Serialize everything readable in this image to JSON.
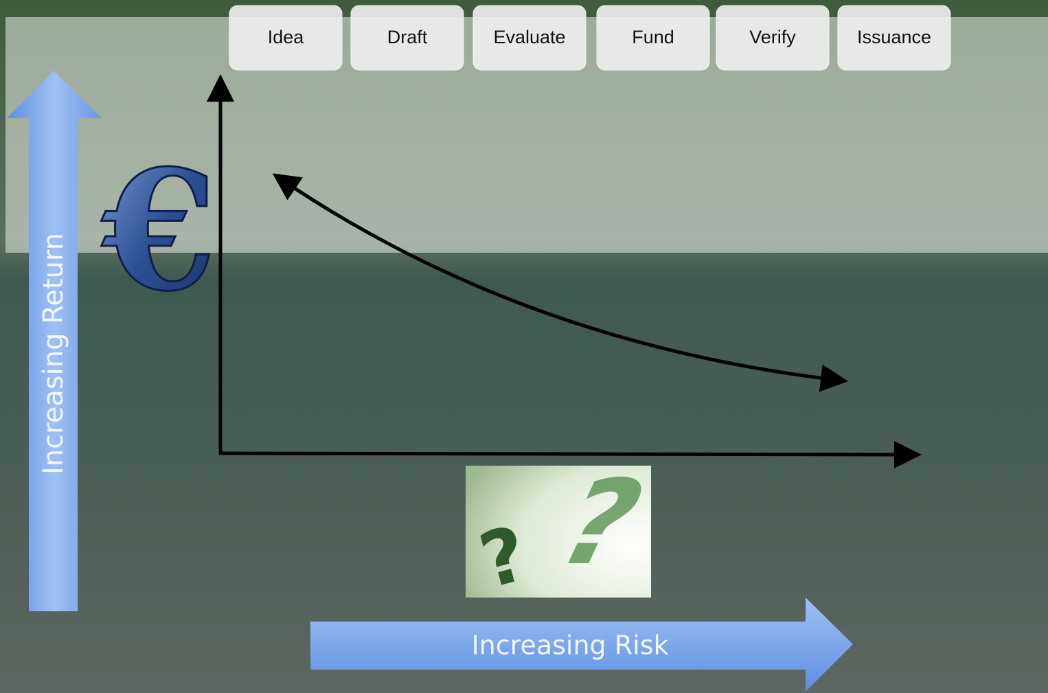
{
  "stages": [
    "Idea",
    "Draft",
    "Evaluate",
    "Fund",
    "Verify",
    "Issuance"
  ],
  "y_axis_label": "Increasing Return",
  "x_axis_label": "Increasing Risk",
  "currency_symbol": "€",
  "risk_symbol": "?"
}
